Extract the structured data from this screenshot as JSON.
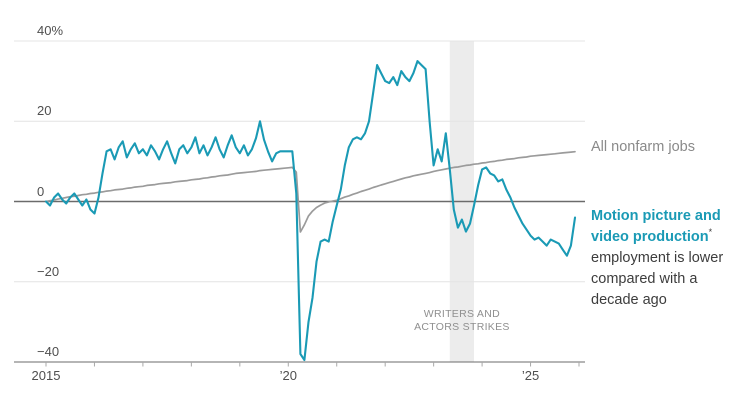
{
  "chart_data": {
    "type": "line",
    "title": "",
    "x_start_year": 2015,
    "x_months": 132,
    "x_range": [
      "2015-01",
      "2026-01"
    ],
    "ylim": [
      -40,
      40
    ],
    "y_unit": "percent change",
    "grid": "horizontal",
    "y_ticks": [
      {
        "value": 40,
        "label": "40%"
      },
      {
        "value": 20,
        "label": "20"
      },
      {
        "value": 0,
        "label": "0"
      },
      {
        "value": -20,
        "label": "−20"
      },
      {
        "value": -40,
        "label": "−40"
      }
    ],
    "x_ticks": [
      {
        "year": 2015,
        "label": "2015"
      },
      {
        "year": 2016,
        "label": ""
      },
      {
        "year": 2017,
        "label": ""
      },
      {
        "year": 2018,
        "label": ""
      },
      {
        "year": 2019,
        "label": ""
      },
      {
        "year": 2020,
        "label": "’20"
      },
      {
        "year": 2021,
        "label": ""
      },
      {
        "year": 2022,
        "label": ""
      },
      {
        "year": 2023,
        "label": ""
      },
      {
        "year": 2024,
        "label": ""
      },
      {
        "year": 2025,
        "label": "’25"
      },
      {
        "year": 2026,
        "label": ""
      }
    ],
    "series": [
      {
        "name": "All nonfarm jobs",
        "color": "#9b9b9b",
        "start": "2015-01",
        "frequency": "monthly",
        "values": [
          0,
          0.2,
          0.4,
          0.6,
          0.8,
          1.0,
          1.2,
          1.3,
          1.5,
          1.7,
          1.8,
          2.0,
          2.1,
          2.3,
          2.4,
          2.6,
          2.7,
          2.9,
          3.0,
          3.1,
          3.3,
          3.4,
          3.6,
          3.7,
          3.8,
          4.0,
          4.1,
          4.2,
          4.4,
          4.5,
          4.6,
          4.7,
          4.9,
          5.0,
          5.1,
          5.2,
          5.4,
          5.5,
          5.6,
          5.8,
          5.9,
          6.1,
          6.2,
          6.4,
          6.5,
          6.6,
          6.8,
          7.0,
          7.1,
          7.2,
          7.3,
          7.4,
          7.5,
          7.7,
          7.8,
          7.9,
          8.0,
          8.1,
          8.2,
          8.3,
          8.4,
          8.5,
          7.3,
          -7.6,
          -5.8,
          -3.6,
          -2.4,
          -1.5,
          -0.9,
          -0.4,
          -0.1,
          0.1,
          0.3,
          0.7,
          1.1,
          1.4,
          1.8,
          2.1,
          2.5,
          2.8,
          3.1,
          3.5,
          3.8,
          4.1,
          4.4,
          4.7,
          5.0,
          5.3,
          5.6,
          5.9,
          6.1,
          6.4,
          6.6,
          6.8,
          7.0,
          7.2,
          7.5,
          7.7,
          7.9,
          8.1,
          8.3,
          8.5,
          8.6,
          8.8,
          9.0,
          9.1,
          9.3,
          9.4,
          9.6,
          9.7,
          9.9,
          10.0,
          10.2,
          10.3,
          10.5,
          10.6,
          10.7,
          10.9,
          11.0,
          11.1,
          11.3,
          11.4,
          11.5,
          11.6,
          11.7,
          11.8,
          11.9,
          12.0,
          12.1,
          12.2,
          12.3,
          12.4
        ]
      },
      {
        "name": "Motion picture and video production",
        "color": "#1a9ab5",
        "start": "2015-01",
        "frequency": "monthly",
        "values": [
          0,
          -1,
          1,
          2,
          0.5,
          -0.5,
          1,
          2,
          0.5,
          -1,
          0.5,
          -2,
          -3,
          1,
          7,
          12.5,
          13,
          10.5,
          13.5,
          15,
          11,
          13,
          14.5,
          12,
          13,
          11.5,
          14,
          12.5,
          10.5,
          13,
          15,
          12,
          9.5,
          13,
          14,
          12,
          13.5,
          16,
          12,
          14,
          11.5,
          13.5,
          16,
          13,
          11,
          14,
          16.5,
          13.5,
          12,
          14,
          11.5,
          13,
          15.8,
          20,
          15.4,
          12.4,
          10,
          12,
          12.5,
          12.5,
          12.5,
          12.5,
          2,
          -38,
          -39.5,
          -30,
          -24,
          -15,
          -10,
          -9.5,
          -10,
          -5,
          -1,
          3,
          9,
          13.5,
          15.5,
          16,
          15.5,
          17,
          20,
          27,
          34,
          32,
          30,
          29.5,
          31,
          29,
          32.5,
          31,
          30,
          32,
          35,
          34,
          33,
          20,
          9,
          13,
          10,
          17,
          8,
          -2,
          -6.5,
          -4.5,
          -7.5,
          -5.5,
          -1,
          4,
          8,
          8.5,
          7,
          6.5,
          5,
          5.5,
          3,
          1,
          -1.5,
          -3.5,
          -5.5,
          -7,
          -8.5,
          -9.5,
          -9,
          -10,
          -11,
          -9.5,
          -10,
          -10.5,
          -12,
          -13.5,
          -11,
          -4
        ]
      }
    ],
    "band": {
      "label_lines": [
        "WRITERS AND",
        "ACTORS STRIKES"
      ],
      "from": "2023-05",
      "to": "2023-11",
      "color": "#ececec",
      "label_color": "#8f8f8f"
    }
  },
  "annotations": {
    "nonfarm_label": "All nonfarm jobs",
    "motion_label": "Motion picture and video production",
    "footnote_marker": "*",
    "motion_description": "employment is lower compared with a decade ago"
  },
  "colors": {
    "zero_line": "#6b6b6b",
    "gridline": "#e4e4e4",
    "axis": "#6b6b6b",
    "tick": "#a8a8a8",
    "axis_label": "#4f4f4f"
  }
}
